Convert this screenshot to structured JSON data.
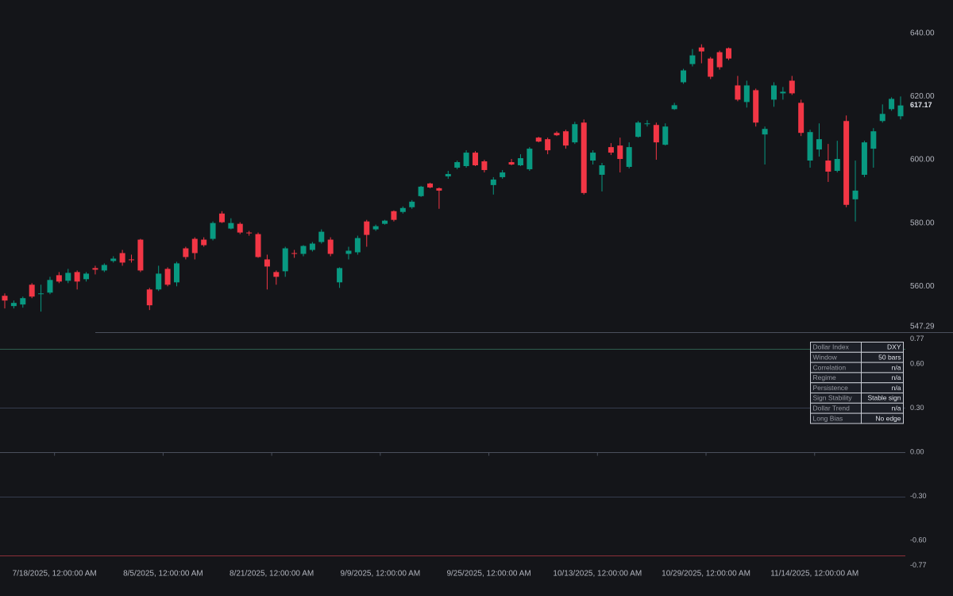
{
  "chart_data": {
    "type": "candlestick",
    "categories": [
      null,
      null,
      null,
      null,
      null,
      null,
      "7/18/2025, 12:00:00 AM",
      null,
      null,
      null,
      null,
      null,
      null,
      null,
      null,
      null,
      null,
      null,
      "8/5/2025, 12:00:00 AM",
      null,
      null,
      null,
      null,
      null,
      null,
      null,
      null,
      null,
      null,
      null,
      "8/21/2025, 12:00:00 AM",
      null,
      null,
      null,
      null,
      null,
      null,
      null,
      null,
      null,
      null,
      null,
      "9/9/2025, 12:00:00 AM",
      null,
      null,
      null,
      null,
      null,
      null,
      null,
      null,
      null,
      null,
      null,
      "9/25/2025, 12:00:00 AM",
      null,
      null,
      null,
      null,
      null,
      null,
      null,
      null,
      null,
      null,
      null,
      "10/13/2025, 12:00:00 AM",
      null,
      null,
      null,
      null,
      null,
      null,
      null,
      null,
      null,
      null,
      null,
      "10/29/2025, 12:00:00 AM",
      null,
      null,
      null,
      null,
      null,
      null,
      null,
      null,
      null,
      null,
      null,
      "11/14/2025, 12:00:00 AM",
      null,
      null,
      null,
      null,
      null,
      null,
      null,
      null,
      null
    ],
    "open": [
      557,
      553.75,
      554.25,
      560.5,
      557.5,
      558,
      563.5,
      561.75,
      564.5,
      562.25,
      565.75,
      565,
      568,
      570.5,
      568.5,
      574.75,
      559,
      559,
      565.5,
      561.25,
      572,
      575,
      574.75,
      575,
      583,
      578.25,
      579.75,
      577,
      576.5,
      568.5,
      564.5,
      564.75,
      570.5,
      570.25,
      571.5,
      574,
      574.75,
      561.25,
      570.25,
      570.75,
      580.5,
      578,
      579.75,
      583.75,
      583.5,
      585,
      588.5,
      592.5,
      591,
      594.75,
      597.5,
      598,
      602.25,
      599.5,
      592,
      594.5,
      599.25,
      598.25,
      597,
      607,
      606.5,
      608.5,
      609,
      605.5,
      611.75,
      599.75,
      595.25,
      604,
      604.5,
      597.75,
      607.25,
      611.25,
      611,
      604.75,
      616,
      624.5,
      630.25,
      635.5,
      632,
      634,
      635.25,
      623.5,
      618.25,
      622,
      608,
      619,
      621,
      625,
      618,
      599.75,
      603.25,
      599.75,
      596.5,
      612.25,
      587.5,
      595.25,
      603.5,
      612.25,
      616,
      613.75
    ],
    "high": [
      557.75,
      555.5,
      556.75,
      561,
      560.5,
      563,
      564.5,
      565.5,
      565,
      564.5,
      566.5,
      567.25,
      569.5,
      571.5,
      570,
      575,
      559.5,
      566.5,
      566,
      567.75,
      572.5,
      575.5,
      575.5,
      580.5,
      583.75,
      581.5,
      580.25,
      577.5,
      577,
      570,
      565,
      572.5,
      571.5,
      573,
      574,
      578,
      575.5,
      566,
      572.5,
      576,
      581,
      579.5,
      581,
      584,
      585.25,
      587.25,
      591.75,
      592.75,
      591.25,
      596.5,
      599.75,
      603,
      602.75,
      600,
      594.5,
      596.75,
      600.25,
      601.75,
      604,
      607.25,
      607,
      609,
      609.5,
      612,
      612.75,
      603,
      599,
      605.25,
      607,
      605.5,
      612.25,
      612.5,
      611.75,
      611.5,
      618,
      628.75,
      635,
      636.5,
      632.5,
      634.5,
      635.5,
      626.5,
      625,
      622.5,
      610.5,
      624.5,
      623,
      626.5,
      619,
      609.5,
      611.5,
      605,
      606,
      614,
      599.75,
      606,
      610,
      617.5,
      619.75,
      620
    ],
    "low": [
      553,
      553,
      553.25,
      556.25,
      552,
      557.5,
      561,
      561,
      559,
      561.5,
      563.75,
      564.5,
      567.5,
      566.5,
      567.5,
      564.5,
      552.5,
      558.5,
      560,
      560,
      568.5,
      568.5,
      572.5,
      574.5,
      580,
      578,
      576.5,
      576,
      569,
      559,
      560.5,
      563,
      569,
      569.5,
      571,
      573.5,
      569.5,
      559.5,
      568.5,
      570,
      572.5,
      577.5,
      579.5,
      580.5,
      583,
      584.5,
      588.25,
      591,
      584.5,
      594,
      597,
      597.5,
      598,
      596,
      589,
      594,
      598.25,
      598,
      596.5,
      605.5,
      601.75,
      607.5,
      603.5,
      605,
      589,
      598.5,
      590,
      601.5,
      596,
      597.25,
      607,
      610.5,
      600,
      604.5,
      615.75,
      624,
      629.5,
      630.5,
      625.5,
      628.5,
      631.5,
      618.5,
      616.5,
      610.5,
      598.5,
      616.75,
      619,
      620.5,
      607.5,
      597.5,
      601,
      593,
      596,
      585,
      580.5,
      594.5,
      597.5,
      611.75,
      615.5,
      612.75
    ],
    "close": [
      555.5,
      554.75,
      556.25,
      556.75,
      557.75,
      562,
      561.5,
      564.25,
      561.5,
      564,
      565.25,
      566.75,
      568.75,
      567.5,
      568.25,
      565,
      554,
      564,
      560.5,
      567.25,
      569.25,
      570.5,
      573,
      580,
      580.25,
      580,
      577,
      576.75,
      569.25,
      566.25,
      563,
      572,
      570.25,
      572.75,
      573.5,
      577.25,
      570.25,
      565.75,
      571.25,
      575.25,
      576.25,
      579,
      580.75,
      581,
      584.75,
      586.75,
      591.5,
      591.25,
      590.25,
      595.5,
      599.25,
      602.25,
      598.25,
      596.75,
      593.75,
      596,
      598.5,
      600.5,
      603.5,
      605.75,
      603,
      607.75,
      604.5,
      611.25,
      589.5,
      602.25,
      598.25,
      602.25,
      600.25,
      604,
      611.75,
      611.5,
      605.5,
      610.5,
      617.25,
      628.25,
      633,
      634.25,
      626.25,
      629.25,
      632,
      619,
      623.5,
      611.75,
      609.75,
      623.5,
      621.5,
      621,
      608.5,
      608.75,
      606.5,
      596.25,
      600.25,
      585.75,
      590.25,
      605.5,
      609,
      614.5,
      619.25,
      617.17
    ],
    "up_color": "#089981",
    "down_color": "#f23645",
    "ylim": [
      545.5,
      650.5
    ],
    "yticks": [
      {
        "value": 640,
        "label": "640.00"
      },
      {
        "value": 620,
        "label": "620.00"
      },
      {
        "value": 600,
        "label": "600.00"
      },
      {
        "value": 580,
        "label": "580.00"
      },
      {
        "value": 560,
        "label": "560.00"
      },
      547.29
    ],
    "indicator": {
      "ylim": [
        -0.77,
        0.77
      ],
      "yticks": [
        0.77,
        {
          "value": 0.6,
          "label": "0.60"
        },
        {
          "value": 0.3,
          "label": "0.30"
        },
        {
          "value": 0,
          "label": "0.00"
        },
        {
          "value": -0.3,
          "label": "-0.30"
        },
        {
          "value": -0.6,
          "label": "-0.60"
        },
        -0.77
      ],
      "levels": [
        0.7,
        0.3,
        0,
        -0.3,
        -0.7
      ],
      "level_colors": [
        "#2e5e4e",
        "#363c4e",
        "#4a4f5c",
        "#363c4e",
        "#8c2f39"
      ]
    },
    "table": {
      "rows": [
        [
          "Dollar Index",
          "DXY"
        ],
        [
          "Window",
          "50 bars"
        ],
        [
          "Correlation",
          "n/a"
        ],
        [
          "Regime",
          "n/a"
        ],
        [
          "Persistence",
          "n/a"
        ],
        [
          "Sign Stability",
          "Stable sign"
        ],
        [
          "Dollar Trend",
          "n/a"
        ],
        [
          "Long Bias",
          "No edge"
        ]
      ]
    }
  }
}
